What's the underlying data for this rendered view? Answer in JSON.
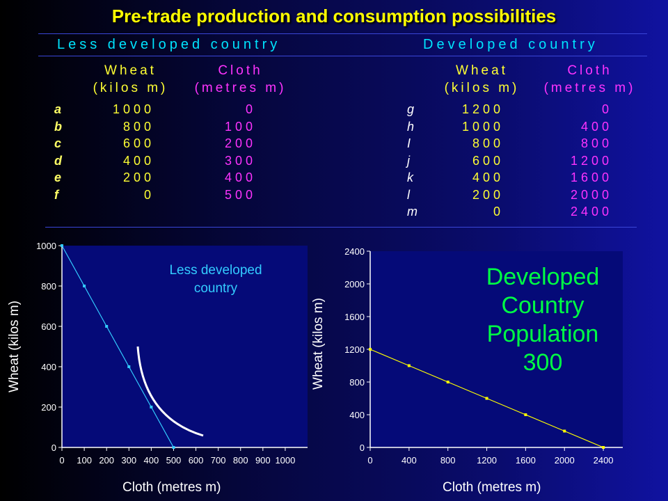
{
  "title": "Pre-trade production and consumption possibilities",
  "tables": {
    "less_developed": {
      "name": "Less developed country",
      "wheat_header": [
        "Wheat",
        "(kilos m)"
      ],
      "cloth_header": [
        "Cloth",
        "(metres m)"
      ],
      "rows": [
        {
          "label": "a",
          "wheat": "1000",
          "cloth": "0"
        },
        {
          "label": "b",
          "wheat": "800",
          "cloth": "100"
        },
        {
          "label": "c",
          "wheat": "600",
          "cloth": "200"
        },
        {
          "label": "d",
          "wheat": "400",
          "cloth": "300"
        },
        {
          "label": "e",
          "wheat": "200",
          "cloth": "400"
        },
        {
          "label": "f",
          "wheat": "0",
          "cloth": "500"
        }
      ]
    },
    "developed": {
      "name": "Developed country",
      "wheat_header": [
        "Wheat",
        "(kilos m)"
      ],
      "cloth_header": [
        "Cloth",
        "(metres m)"
      ],
      "rows": [
        {
          "label": "g",
          "wheat": "1200",
          "cloth": "0"
        },
        {
          "label": "h",
          "wheat": "1000",
          "cloth": "400"
        },
        {
          "label": "I",
          "wheat": "800",
          "cloth": "800"
        },
        {
          "label": "j",
          "wheat": "600",
          "cloth": "1200"
        },
        {
          "label": "k",
          "wheat": "400",
          "cloth": "1600"
        },
        {
          "label": "l",
          "wheat": "200",
          "cloth": "2000"
        },
        {
          "label": "m",
          "wheat": "0",
          "cloth": "2400"
        }
      ]
    }
  },
  "chart_data": [
    {
      "type": "line",
      "xlabel": "Cloth (metres m)",
      "ylabel": "Wheat (kilos m)",
      "xlim": [
        0,
        1100
      ],
      "ylim": [
        0,
        1000
      ],
      "xticks": [
        0,
        100,
        200,
        300,
        400,
        500,
        600,
        700,
        800,
        900,
        1000
      ],
      "xtick_labels": [
        "0",
        "100",
        "200",
        "300",
        "400",
        "500",
        "600",
        "700",
        "800",
        "900",
        "1000"
      ],
      "yticks": [
        0,
        200,
        400,
        600,
        800,
        1000
      ],
      "ytick_labels": [
        "0",
        "200",
        "400",
        "600",
        "800",
        "1000"
      ],
      "x": [
        0,
        100,
        200,
        300,
        400,
        500
      ],
      "y": [
        1000,
        800,
        600,
        400,
        200,
        0
      ],
      "line_color": "#33ccff",
      "annotation": [
        "Less developed",
        "country"
      ]
    },
    {
      "type": "line",
      "xlabel": "Cloth (metres m)",
      "ylabel": "Wheat (kilos m)",
      "xlim": [
        0,
        2600
      ],
      "ylim": [
        0,
        2400
      ],
      "xticks": [
        0,
        400,
        800,
        1200,
        1600,
        2000,
        2400
      ],
      "xtick_labels": [
        "0",
        "400",
        "800",
        "1200",
        "1600",
        "2000",
        "2400"
      ],
      "yticks": [
        0,
        400,
        800,
        1200,
        1600,
        2000,
        2400
      ],
      "ytick_labels": [
        "0",
        "400",
        "800",
        "1200",
        "1600",
        "2000",
        "2400"
      ],
      "x": [
        0,
        400,
        800,
        1200,
        1600,
        2000,
        2400
      ],
      "y": [
        1200,
        1000,
        800,
        600,
        400,
        200,
        0
      ],
      "line_color": "#ffff00",
      "annotation": [
        "Developed",
        "Country",
        "Population",
        "300"
      ]
    }
  ]
}
